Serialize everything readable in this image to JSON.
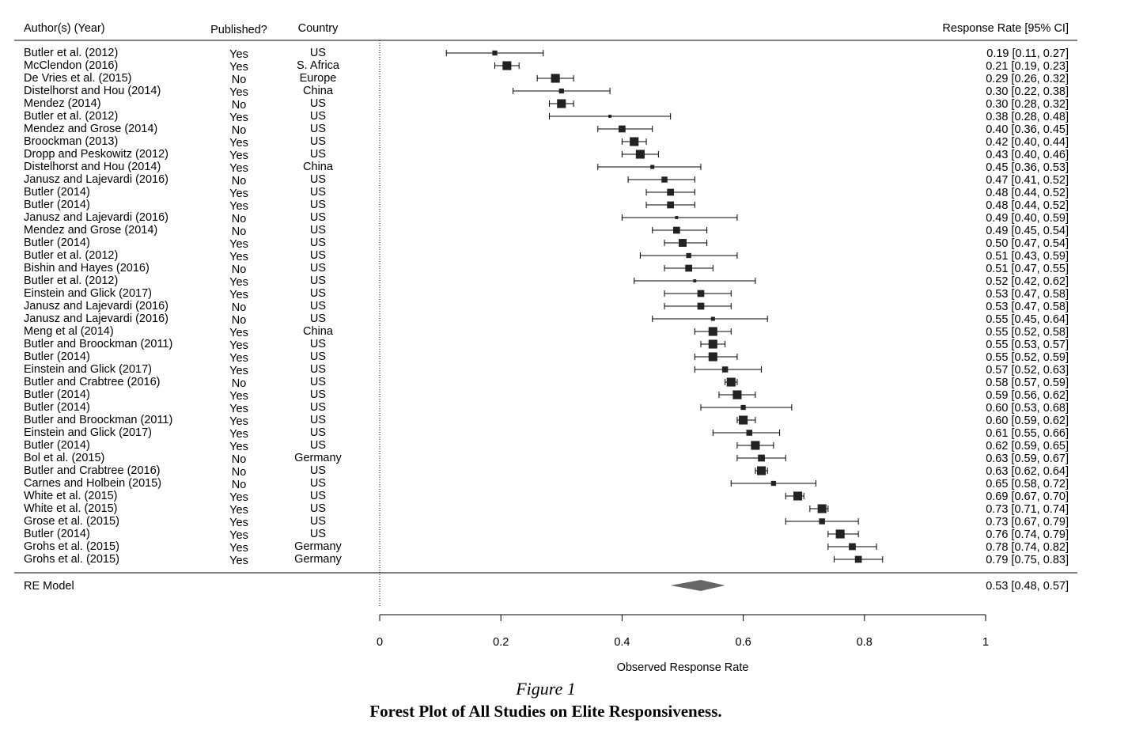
{
  "chart_data": {
    "type": "forest",
    "headers": {
      "author": "Author(s) (Year)",
      "published": "Published?",
      "country": "Country",
      "estimate": "Response Rate [95% CI]"
    },
    "xlabel": "Observed Response Rate",
    "xlim": [
      0,
      1
    ],
    "xticks": [
      "0",
      "0.2",
      "0.4",
      "0.6",
      "0.8",
      "1"
    ],
    "reference_line": 0,
    "studies": [
      {
        "author": "Butler et al. (2012)",
        "published": "Yes",
        "country": "US",
        "est": 0.19,
        "lo": 0.11,
        "hi": 0.27,
        "label": "0.19 [0.11, 0.27]",
        "weight": 2
      },
      {
        "author": "McClendon (2016)",
        "published": "Yes",
        "country": "S. Africa",
        "est": 0.21,
        "lo": 0.19,
        "hi": 0.23,
        "label": "0.21 [0.19, 0.23]",
        "weight": 4
      },
      {
        "author": "De Vries et al. (2015)",
        "published": "No",
        "country": "Europe",
        "est": 0.29,
        "lo": 0.26,
        "hi": 0.32,
        "label": "0.29 [0.26, 0.32]",
        "weight": 4
      },
      {
        "author": "Distelhorst and Hou (2014)",
        "published": "Yes",
        "country": "China",
        "est": 0.3,
        "lo": 0.22,
        "hi": 0.38,
        "label": "0.30 [0.22, 0.38]",
        "weight": 2
      },
      {
        "author": "Mendez (2014)",
        "published": "No",
        "country": "US",
        "est": 0.3,
        "lo": 0.28,
        "hi": 0.32,
        "label": "0.30 [0.28, 0.32]",
        "weight": 4
      },
      {
        "author": "Butler et al. (2012)",
        "published": "Yes",
        "country": "US",
        "est": 0.38,
        "lo": 0.28,
        "hi": 0.48,
        "label": "0.38 [0.28, 0.48]",
        "weight": 1
      },
      {
        "author": "Mendez and Grose (2014)",
        "published": "No",
        "country": "US",
        "est": 0.4,
        "lo": 0.36,
        "hi": 0.45,
        "label": "0.40 [0.36, 0.45]",
        "weight": 3
      },
      {
        "author": "Broockman (2013)",
        "published": "Yes",
        "country": "US",
        "est": 0.42,
        "lo": 0.4,
        "hi": 0.44,
        "label": "0.42 [0.40, 0.44]",
        "weight": 4
      },
      {
        "author": "Dropp and Peskowitz (2012)",
        "published": "Yes",
        "country": "US",
        "est": 0.43,
        "lo": 0.4,
        "hi": 0.46,
        "label": "0.43 [0.40, 0.46]",
        "weight": 4
      },
      {
        "author": "Distelhorst and Hou (2014)",
        "published": "Yes",
        "country": "China",
        "est": 0.45,
        "lo": 0.36,
        "hi": 0.53,
        "label": "0.45 [0.36, 0.53]",
        "weight": 1.5
      },
      {
        "author": "Janusz and Lajevardi (2016)",
        "published": "No",
        "country": "US",
        "est": 0.47,
        "lo": 0.41,
        "hi": 0.52,
        "label": "0.47 [0.41, 0.52]",
        "weight": 2.5
      },
      {
        "author": "Butler (2014)",
        "published": "Yes",
        "country": "US",
        "est": 0.48,
        "lo": 0.44,
        "hi": 0.52,
        "label": "0.48 [0.44, 0.52]",
        "weight": 3
      },
      {
        "author": "Butler (2014)",
        "published": "Yes",
        "country": "US",
        "est": 0.48,
        "lo": 0.44,
        "hi": 0.52,
        "label": "0.48 [0.44, 0.52]",
        "weight": 3
      },
      {
        "author": "Janusz and Lajevardi (2016)",
        "published": "No",
        "country": "US",
        "est": 0.49,
        "lo": 0.4,
        "hi": 0.59,
        "label": "0.49 [0.40, 0.59]",
        "weight": 1
      },
      {
        "author": "Mendez and Grose (2014)",
        "published": "No",
        "country": "US",
        "est": 0.49,
        "lo": 0.45,
        "hi": 0.54,
        "label": "0.49 [0.45, 0.54]",
        "weight": 3
      },
      {
        "author": "Butler (2014)",
        "published": "Yes",
        "country": "US",
        "est": 0.5,
        "lo": 0.47,
        "hi": 0.54,
        "label": "0.50 [0.47, 0.54]",
        "weight": 3.5
      },
      {
        "author": "Butler et al. (2012)",
        "published": "Yes",
        "country": "US",
        "est": 0.51,
        "lo": 0.43,
        "hi": 0.59,
        "label": "0.51 [0.43, 0.59]",
        "weight": 2
      },
      {
        "author": "Bishin and Hayes (2016)",
        "published": "No",
        "country": "US",
        "est": 0.51,
        "lo": 0.47,
        "hi": 0.55,
        "label": "0.51 [0.47, 0.55]",
        "weight": 3
      },
      {
        "author": "Butler et al. (2012)",
        "published": "Yes",
        "country": "US",
        "est": 0.52,
        "lo": 0.42,
        "hi": 0.62,
        "label": "0.52 [0.42, 0.62]",
        "weight": 1
      },
      {
        "author": "Einstein and Glick (2017)",
        "published": "Yes",
        "country": "US",
        "est": 0.53,
        "lo": 0.47,
        "hi": 0.58,
        "label": "0.53 [0.47, 0.58]",
        "weight": 3
      },
      {
        "author": "Janusz and Lajevardi (2016)",
        "published": "No",
        "country": "US",
        "est": 0.53,
        "lo": 0.47,
        "hi": 0.58,
        "label": "0.53 [0.47, 0.58]",
        "weight": 3
      },
      {
        "author": "Janusz and Lajevardi (2016)",
        "published": "No",
        "country": "US",
        "est": 0.55,
        "lo": 0.45,
        "hi": 0.64,
        "label": "0.55 [0.45, 0.64]",
        "weight": 1.5
      },
      {
        "author": "Meng et al (2014)",
        "published": "Yes",
        "country": "China",
        "est": 0.55,
        "lo": 0.52,
        "hi": 0.58,
        "label": "0.55 [0.52, 0.58]",
        "weight": 4
      },
      {
        "author": "Butler and Broockman (2011)",
        "published": "Yes",
        "country": "US",
        "est": 0.55,
        "lo": 0.53,
        "hi": 0.57,
        "label": "0.55 [0.53, 0.57]",
        "weight": 4
      },
      {
        "author": "Butler (2014)",
        "published": "Yes",
        "country": "US",
        "est": 0.55,
        "lo": 0.52,
        "hi": 0.59,
        "label": "0.55 [0.52, 0.59]",
        "weight": 4
      },
      {
        "author": "Einstein and Glick (2017)",
        "published": "Yes",
        "country": "US",
        "est": 0.57,
        "lo": 0.52,
        "hi": 0.63,
        "label": "0.57 [0.52, 0.63]",
        "weight": 2.5
      },
      {
        "author": "Butler and Crabtree (2016)",
        "published": "No",
        "country": "US",
        "est": 0.58,
        "lo": 0.57,
        "hi": 0.59,
        "label": "0.58 [0.57, 0.59]",
        "weight": 4
      },
      {
        "author": "Butler (2014)",
        "published": "Yes",
        "country": "US",
        "est": 0.59,
        "lo": 0.56,
        "hi": 0.62,
        "label": "0.59 [0.56, 0.62]",
        "weight": 4
      },
      {
        "author": "Butler (2014)",
        "published": "Yes",
        "country": "US",
        "est": 0.6,
        "lo": 0.53,
        "hi": 0.68,
        "label": "0.60 [0.53, 0.68]",
        "weight": 2
      },
      {
        "author": "Butler and Broockman (2011)",
        "published": "Yes",
        "country": "US",
        "est": 0.6,
        "lo": 0.59,
        "hi": 0.62,
        "label": "0.60 [0.59, 0.62]",
        "weight": 4
      },
      {
        "author": "Einstein and Glick (2017)",
        "published": "Yes",
        "country": "US",
        "est": 0.61,
        "lo": 0.55,
        "hi": 0.66,
        "label": "0.61 [0.55, 0.66]",
        "weight": 2.5
      },
      {
        "author": "Butler (2014)",
        "published": "Yes",
        "country": "US",
        "est": 0.62,
        "lo": 0.59,
        "hi": 0.65,
        "label": "0.62 [0.59, 0.65]",
        "weight": 4
      },
      {
        "author": "Bol et al. (2015)",
        "published": "No",
        "country": "Germany",
        "est": 0.63,
        "lo": 0.59,
        "hi": 0.67,
        "label": "0.63 [0.59, 0.67]",
        "weight": 3
      },
      {
        "author": "Butler and Crabtree (2016)",
        "published": "No",
        "country": "US",
        "est": 0.63,
        "lo": 0.62,
        "hi": 0.64,
        "label": "0.63 [0.62, 0.64]",
        "weight": 4
      },
      {
        "author": "Carnes and Holbein (2015)",
        "published": "No",
        "country": "US",
        "est": 0.65,
        "lo": 0.58,
        "hi": 0.72,
        "label": "0.65 [0.58, 0.72]",
        "weight": 2
      },
      {
        "author": "White et al. (2015)",
        "published": "Yes",
        "country": "US",
        "est": 0.69,
        "lo": 0.67,
        "hi": 0.7,
        "label": "0.69 [0.67, 0.70]",
        "weight": 4
      },
      {
        "author": "White et al. (2015)",
        "published": "Yes",
        "country": "US",
        "est": 0.73,
        "lo": 0.71,
        "hi": 0.74,
        "label": "0.73 [0.71, 0.74]",
        "weight": 4
      },
      {
        "author": "Grose et al. (2015)",
        "published": "Yes",
        "country": "US",
        "est": 0.73,
        "lo": 0.67,
        "hi": 0.79,
        "label": "0.73 [0.67, 0.79]",
        "weight": 2.5
      },
      {
        "author": "Butler (2014)",
        "published": "Yes",
        "country": "US",
        "est": 0.76,
        "lo": 0.74,
        "hi": 0.79,
        "label": "0.76 [0.74, 0.79]",
        "weight": 4
      },
      {
        "author": "Grohs et al. (2015)",
        "published": "Yes",
        "country": "Germany",
        "est": 0.78,
        "lo": 0.74,
        "hi": 0.82,
        "label": "0.78 [0.74, 0.82]",
        "weight": 3
      },
      {
        "author": "Grohs et al. (2015)",
        "published": "Yes",
        "country": "Germany",
        "est": 0.79,
        "lo": 0.75,
        "hi": 0.83,
        "label": "0.79 [0.75, 0.83]",
        "weight": 3
      }
    ],
    "summary": {
      "label": "RE Model",
      "est": 0.53,
      "lo": 0.48,
      "hi": 0.57,
      "text": "0.53 [0.48, 0.57]"
    },
    "colors": {
      "marker": "#222222",
      "summary": "#666666"
    }
  },
  "caption": {
    "figure_number": "Figure 1",
    "title": "Forest Plot of All Studies on Elite Responsiveness."
  }
}
